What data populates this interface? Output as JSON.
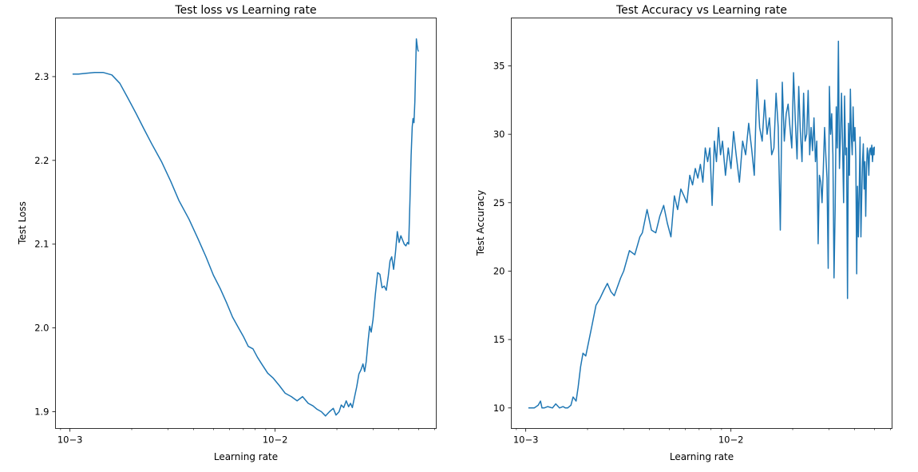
{
  "chart_data": [
    {
      "type": "line",
      "title": "Test loss vs Learning rate",
      "xlabel": "Learning rate",
      "ylabel": "Test Loss",
      "xscale": "log",
      "xlim": [
        0.00085,
        0.061
      ],
      "ylim": [
        1.88,
        2.37
      ],
      "x_ticks": [
        {
          "value": 0.001,
          "label": "10−3"
        },
        {
          "value": 0.01,
          "label": "10−2"
        }
      ],
      "y_ticks": [
        {
          "value": 1.9,
          "label": "1.9"
        },
        {
          "value": 2.0,
          "label": "2.0"
        },
        {
          "value": 2.1,
          "label": "2.1"
        },
        {
          "value": 2.2,
          "label": "2.2"
        },
        {
          "value": 2.3,
          "label": "2.3"
        }
      ],
      "grid": false,
      "color": "#1f77b4",
      "series": [
        {
          "x": [
            0.00103,
            0.0011,
            0.0012,
            0.00132,
            0.00145,
            0.0016,
            0.00175,
            0.0019,
            0.0021,
            0.0023,
            0.0025,
            0.0028,
            0.0031,
            0.0034,
            0.0038,
            0.0042,
            0.0046,
            0.005,
            0.0054,
            0.0058,
            0.0062,
            0.0066,
            0.007,
            0.0074,
            0.0078,
            0.0082,
            0.0086,
            0.0092,
            0.0098,
            0.0105,
            0.0112,
            0.012,
            0.0128,
            0.0136,
            0.0145,
            0.0153,
            0.016,
            0.0168,
            0.0176,
            0.0184,
            0.0192,
            0.0198,
            0.0205,
            0.021,
            0.0216,
            0.0222,
            0.0228,
            0.0233,
            0.0238,
            0.0245,
            0.025,
            0.0256,
            0.0262,
            0.0268,
            0.0273,
            0.0278,
            0.0284,
            0.0289,
            0.0294,
            0.03,
            0.0308,
            0.0316,
            0.0324,
            0.0332,
            0.034,
            0.0348,
            0.0356,
            0.0363,
            0.037,
            0.0378,
            0.0386,
            0.0394,
            0.0402,
            0.041,
            0.0418,
            0.0426,
            0.0434,
            0.0442,
            0.0448,
            0.0454,
            0.046,
            0.0466,
            0.047,
            0.0475,
            0.048,
            0.0484,
            0.0488,
            0.0492,
            0.0496,
            0.05
          ],
          "y": [
            2.303,
            2.303,
            2.304,
            2.305,
            2.305,
            2.302,
            2.292,
            2.276,
            2.256,
            2.237,
            2.22,
            2.198,
            2.175,
            2.152,
            2.13,
            2.107,
            2.085,
            2.063,
            2.047,
            2.03,
            2.013,
            2.001,
            1.99,
            1.978,
            1.975,
            1.965,
            1.957,
            1.946,
            1.94,
            1.931,
            1.922,
            1.918,
            1.913,
            1.918,
            1.91,
            1.907,
            1.903,
            1.9,
            1.895,
            1.9,
            1.904,
            1.896,
            1.9,
            1.908,
            1.905,
            1.913,
            1.906,
            1.91,
            1.905,
            1.92,
            1.93,
            1.945,
            1.95,
            1.957,
            1.948,
            1.96,
            1.985,
            2.002,
            1.995,
            2.01,
            2.04,
            2.066,
            2.064,
            2.048,
            2.05,
            2.045,
            2.062,
            2.08,
            2.085,
            2.07,
            2.09,
            2.115,
            2.102,
            2.11,
            2.105,
            2.1,
            2.098,
            2.102,
            2.1,
            2.15,
            2.205,
            2.24,
            2.25,
            2.245,
            2.27,
            2.31,
            2.345,
            2.338,
            2.332,
            2.33
          ]
        }
      ]
    },
    {
      "type": "line",
      "title": "Test Accuracy vs Learning rate",
      "xlabel": "Learning rate",
      "ylabel": "Test Accuracy",
      "xscale": "log",
      "xlim": [
        0.00085,
        0.061
      ],
      "ylim": [
        8.5,
        38.5
      ],
      "x_ticks": [
        {
          "value": 0.001,
          "label": "10−3"
        },
        {
          "value": 0.01,
          "label": "10−2"
        }
      ],
      "y_ticks": [
        {
          "value": 10,
          "label": "10"
        },
        {
          "value": 15,
          "label": "15"
        },
        {
          "value": 20,
          "label": "20"
        },
        {
          "value": 25,
          "label": "25"
        },
        {
          "value": 30,
          "label": "30"
        },
        {
          "value": 35,
          "label": "35"
        }
      ],
      "grid": false,
      "color": "#1f77b4",
      "series": [
        {
          "x": [
            0.00103,
            0.0011,
            0.00115,
            0.00118,
            0.0012,
            0.00123,
            0.00128,
            0.00135,
            0.0014,
            0.00146,
            0.00152,
            0.00156,
            0.0016,
            0.00166,
            0.0017,
            0.00176,
            0.0018,
            0.00185,
            0.0019,
            0.00196,
            0.0021,
            0.0022,
            0.0023,
            0.0024,
            0.0025,
            0.0026,
            0.0027,
            0.0029,
            0.003,
            0.0032,
            0.0034,
            0.0036,
            0.0037,
            0.0039,
            0.0041,
            0.0043,
            0.0045,
            0.0047,
            0.0049,
            0.0051,
            0.0053,
            0.0055,
            0.0057,
            0.0059,
            0.0061,
            0.0063,
            0.0065,
            0.0067,
            0.0069,
            0.0071,
            0.0073,
            0.0075,
            0.0077,
            0.0079,
            0.0081,
            0.0083,
            0.0085,
            0.0087,
            0.0089,
            0.0091,
            0.0094,
            0.0097,
            0.01,
            0.0103,
            0.0106,
            0.011,
            0.0114,
            0.0118,
            0.0122,
            0.0126,
            0.013,
            0.0134,
            0.0138,
            0.0142,
            0.0146,
            0.015,
            0.0154,
            0.0158,
            0.0162,
            0.0166,
            0.017,
            0.0174,
            0.0178,
            0.0182,
            0.0186,
            0.019,
            0.0194,
            0.0198,
            0.0202,
            0.0206,
            0.021,
            0.0214,
            0.0218,
            0.0222,
            0.0226,
            0.023,
            0.0234,
            0.0238,
            0.0242,
            0.0246,
            0.025,
            0.0254,
            0.0258,
            0.0262,
            0.0266,
            0.027,
            0.0274,
            0.0278,
            0.0282,
            0.0286,
            0.029,
            0.0294,
            0.0298,
            0.0302,
            0.0306,
            0.031,
            0.0314,
            0.0318,
            0.0322,
            0.0326,
            0.033,
            0.0334,
            0.0338,
            0.0342,
            0.0346,
            0.035,
            0.0354,
            0.0358,
            0.0362,
            0.0366,
            0.037,
            0.0374,
            0.0378,
            0.0382,
            0.0386,
            0.039,
            0.0394,
            0.0398,
            0.0402,
            0.0406,
            0.041,
            0.0414,
            0.0418,
            0.0422,
            0.0426,
            0.043,
            0.0434,
            0.0438,
            0.0442,
            0.0446,
            0.045,
            0.0454,
            0.0458,
            0.0462,
            0.0466,
            0.047,
            0.0474,
            0.0478,
            0.0482,
            0.0486,
            0.049,
            0.0494,
            0.0498,
            0.05
          ],
          "y": [
            10,
            10,
            10.2,
            10.5,
            10,
            10,
            10.1,
            10,
            10.3,
            10,
            10.1,
            10,
            10,
            10.2,
            10.8,
            10.5,
            11.5,
            13,
            14,
            13.8,
            16,
            17.5,
            18,
            18.6,
            19.1,
            18.5,
            18.2,
            19.5,
            20,
            21.5,
            21.2,
            22.5,
            22.8,
            24.5,
            23,
            22.8,
            24,
            24.8,
            23.5,
            22.5,
            25.5,
            24.5,
            26,
            25.5,
            25,
            27,
            26.3,
            27.5,
            26.8,
            27.8,
            26.5,
            29,
            28,
            29,
            24.8,
            29.5,
            28,
            30.5,
            28.5,
            29.5,
            27,
            29,
            27.5,
            30.2,
            28.5,
            26.5,
            29.5,
            28.5,
            30.8,
            29,
            27,
            34,
            30.5,
            29.5,
            32.5,
            30,
            31.2,
            28.5,
            29,
            33,
            30.5,
            23,
            33.8,
            29.5,
            31.5,
            32.2,
            30.5,
            29,
            34.5,
            31,
            28.2,
            33.5,
            30.2,
            28,
            33,
            29.5,
            30,
            33.2,
            28.5,
            30.5,
            28.8,
            31.2,
            28,
            29.5,
            22,
            27,
            26.5,
            25,
            27.5,
            30.5,
            28.5,
            26.8,
            20.2,
            33.5,
            30,
            31.5,
            28.5,
            19.5,
            24.5,
            32,
            29,
            36.8,
            27.5,
            30,
            33,
            29.2,
            25,
            32.8,
            28.5,
            29,
            18,
            30.8,
            27,
            33.3,
            30,
            28.5,
            32,
            29.5,
            30.5,
            28.2,
            19.8,
            26.2,
            22.5,
            26,
            29.8,
            22.5,
            25.5,
            28,
            29.3,
            26,
            28,
            24,
            27.5,
            29,
            28.5,
            27,
            28.8,
            29,
            28.5,
            29.2,
            28,
            29,
            28.5,
            29.1
          ]
        }
      ]
    }
  ]
}
